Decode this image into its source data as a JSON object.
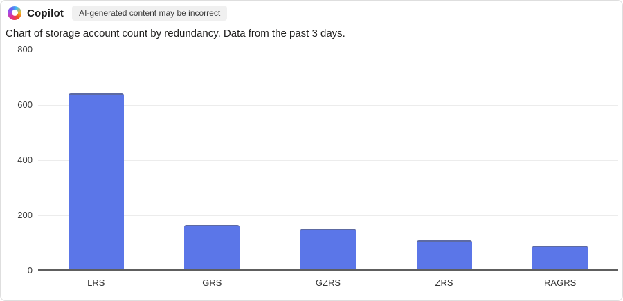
{
  "header": {
    "app_name": "Copilot",
    "disclaimer": "AI-generated content may be incorrect",
    "logo_icon": "copilot-logo"
  },
  "description": "Chart of storage account count by redundancy. Data from the past 3 days.",
  "chart_data": {
    "type": "bar",
    "title": "Chart of storage account count by redundancy. Data from the past 3 days.",
    "categories": [
      "LRS",
      "GRS",
      "GZRS",
      "ZRS",
      "RAGRS"
    ],
    "values": [
      637,
      160,
      148,
      104,
      84
    ],
    "xlabel": "",
    "ylabel": "",
    "ylim": [
      0,
      800
    ],
    "yticks": [
      0,
      200,
      400,
      600,
      800
    ],
    "grid": true,
    "legend": false,
    "bar_color": "#5b76e8"
  },
  "colors": {
    "bar": "#5b76e8",
    "gridline": "#ececec",
    "axis_line": "#5e5e5e",
    "badge_background": "#f0f0f0",
    "card_border": "#dedede"
  }
}
